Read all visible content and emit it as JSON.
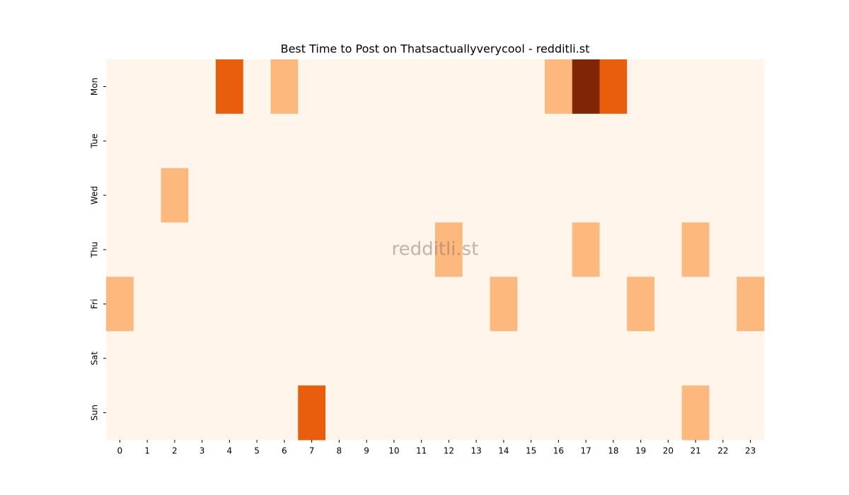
{
  "chart_data": {
    "type": "heatmap",
    "title": "Best Time to Post on Thatsactuallyverycool - redditli.st",
    "watermark": "redditli.st",
    "x": [
      0,
      1,
      2,
      3,
      4,
      5,
      6,
      7,
      8,
      9,
      10,
      11,
      12,
      13,
      14,
      15,
      16,
      17,
      18,
      19,
      20,
      21,
      22,
      23
    ],
    "y": [
      "Mon",
      "Tue",
      "Wed",
      "Thu",
      "Fri",
      "Sat",
      "Sun"
    ],
    "values": [
      [
        0,
        0,
        0,
        0,
        2,
        0,
        1,
        0,
        0,
        0,
        0,
        0,
        0,
        0,
        0,
        0,
        1,
        3,
        2,
        0,
        0,
        0,
        0,
        0
      ],
      [
        0,
        0,
        0,
        0,
        0,
        0,
        0,
        0,
        0,
        0,
        0,
        0,
        0,
        0,
        0,
        0,
        0,
        0,
        0,
        0,
        0,
        0,
        0,
        0
      ],
      [
        0,
        0,
        1,
        0,
        0,
        0,
        0,
        0,
        0,
        0,
        0,
        0,
        0,
        0,
        0,
        0,
        0,
        0,
        0,
        0,
        0,
        0,
        0,
        0
      ],
      [
        0,
        0,
        0,
        0,
        0,
        0,
        0,
        0,
        0,
        0,
        0,
        0,
        1,
        0,
        0,
        0,
        0,
        1,
        0,
        0,
        0,
        1,
        0,
        0
      ],
      [
        1,
        0,
        0,
        0,
        0,
        0,
        0,
        0,
        0,
        0,
        0,
        0,
        0,
        0,
        1,
        0,
        0,
        0,
        0,
        1,
        0,
        0,
        0,
        1
      ],
      [
        0,
        0,
        0,
        0,
        0,
        0,
        0,
        0,
        0,
        0,
        0,
        0,
        0,
        0,
        0,
        0,
        0,
        0,
        0,
        0,
        0,
        0,
        0,
        0
      ],
      [
        0,
        0,
        0,
        0,
        0,
        0,
        0,
        2,
        0,
        0,
        0,
        0,
        0,
        0,
        0,
        0,
        0,
        0,
        0,
        0,
        0,
        1,
        0,
        0
      ]
    ],
    "vmin": 0,
    "vmax": 3,
    "colormap": [
      "#fff5eb",
      "#fdb97d",
      "#e95e0d",
      "#7f2704"
    ]
  }
}
